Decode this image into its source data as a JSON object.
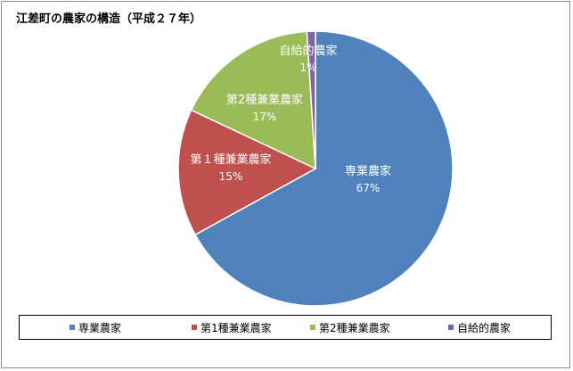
{
  "chart_data": {
    "type": "pie",
    "title": "江差町の農家の構造（平成２７年）",
    "categories": [
      "専業農家",
      "第1種兼業農家",
      "第2種兼業農家",
      "自給的農家"
    ],
    "values": [
      67,
      15,
      17,
      1
    ],
    "value_labels": [
      "67%",
      "15%",
      "17%",
      "1%"
    ],
    "slice_labels": [
      "専業農家",
      "第１種兼業農家",
      "第2種兼業農家",
      "自給的農家"
    ],
    "colors": [
      "#4f81bd",
      "#c0504d",
      "#9bbb59",
      "#8064a2"
    ],
    "legend_position": "bottom"
  }
}
